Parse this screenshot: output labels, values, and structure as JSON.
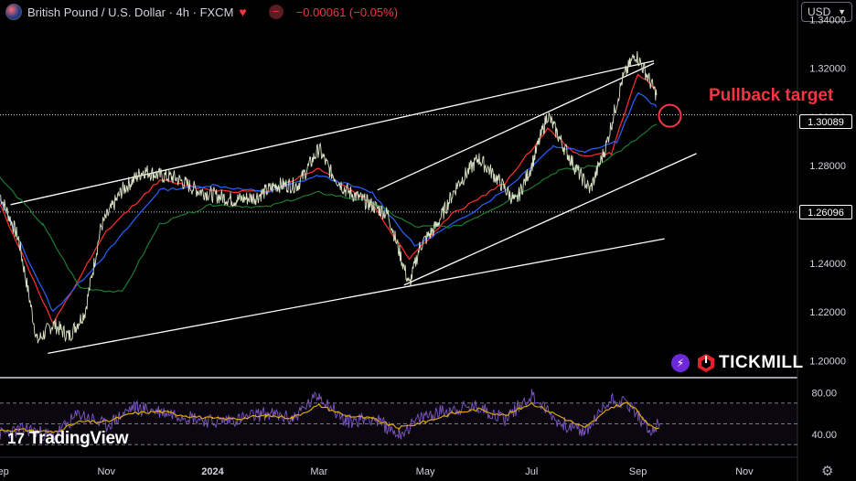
{
  "header": {
    "symbol_line": "British Pound / U.S. Dollar · 4h · FXCM",
    "change": "−0.00061 (−0.05%)",
    "minus_badge": "−"
  },
  "currency": {
    "value": "USD",
    "chevron_icon": "chevron-down-icon"
  },
  "price_tags": {
    "current": "1.30089",
    "level": "1.26096"
  },
  "annotation": {
    "text": "Pullback target"
  },
  "brand": {
    "name": "TICKMILL",
    "bolt_icon": "bolt-icon"
  },
  "watermark": {
    "logo": "17",
    "name": "TradingView"
  },
  "colors": {
    "background": "#000000",
    "price": "#d8e3c4",
    "sma_fast": "#ff3030",
    "sma_mid": "#2962ff",
    "sma_slow": "#1e7a2e",
    "trendline": "#ffffff",
    "annotation": "#f23645",
    "rsi": "#7e57c2",
    "rsi_signal": "#e7b000"
  },
  "chart_data": [
    {
      "type": "line",
      "x_ticks": [
        "Sep",
        "Nov",
        "2024",
        "Mar",
        "May",
        "Jul",
        "Sep",
        "Nov"
      ],
      "y_ticks": [
        "1.34000",
        "1.32000",
        "1.30000",
        "1.28000",
        "1.26000",
        "1.24000",
        "1.22000",
        "1.20000"
      ],
      "ylim": [
        1.193,
        1.348
      ],
      "x_domain": [
        0,
        15
      ],
      "x_tick_positions": [
        0,
        2,
        4,
        6,
        8,
        10,
        12,
        14
      ],
      "series": [
        {
          "role": "price",
          "x": [
            0,
            0.35,
            0.7,
            1.0,
            1.3,
            1.6,
            1.9,
            2.3,
            2.7,
            3.0,
            3.3,
            3.7,
            4.0,
            4.4,
            4.8,
            5.2,
            5.6,
            6.0,
            6.2,
            6.5,
            6.9,
            7.3,
            7.7,
            7.9,
            8.2,
            8.6,
            9.0,
            9.3,
            9.7,
            10.0,
            10.3,
            10.6,
            10.8,
            11.1,
            11.4,
            11.7,
            11.95,
            12.15,
            12.35
          ],
          "values": [
            1.268,
            1.25,
            1.208,
            1.215,
            1.21,
            1.22,
            1.255,
            1.27,
            1.278,
            1.276,
            1.275,
            1.27,
            1.268,
            1.266,
            1.267,
            1.272,
            1.272,
            1.287,
            1.278,
            1.27,
            1.265,
            1.26,
            1.231,
            1.247,
            1.255,
            1.272,
            1.283,
            1.276,
            1.265,
            1.28,
            1.301,
            1.288,
            1.28,
            1.27,
            1.288,
            1.315,
            1.326,
            1.318,
            1.309
          ]
        },
        {
          "role": "sma_fast",
          "x": [
            0,
            1.0,
            2.0,
            3.0,
            4.0,
            5.0,
            6.0,
            7.0,
            7.7,
            8.5,
            9.5,
            10.3,
            10.9,
            11.5,
            12.0,
            12.35
          ],
          "values": [
            1.264,
            1.215,
            1.253,
            1.274,
            1.27,
            1.269,
            1.279,
            1.264,
            1.242,
            1.26,
            1.273,
            1.295,
            1.284,
            1.285,
            1.318,
            1.311
          ]
        },
        {
          "role": "sma_mid",
          "x": [
            0,
            1.0,
            2.0,
            3.0,
            4.0,
            5.0,
            6.0,
            7.0,
            7.8,
            8.6,
            9.5,
            10.4,
            11.0,
            11.6,
            12.0,
            12.35
          ],
          "values": [
            1.266,
            1.22,
            1.244,
            1.27,
            1.272,
            1.269,
            1.276,
            1.269,
            1.247,
            1.257,
            1.27,
            1.288,
            1.286,
            1.29,
            1.31,
            1.304
          ]
        },
        {
          "role": "sma_slow",
          "x": [
            0,
            0.8,
            1.5,
            2.3,
            3.0,
            4.0,
            5.0,
            6.0,
            7.0,
            7.8,
            8.6,
            9.5,
            10.5,
            11.2,
            11.8,
            12.35
          ],
          "values": [
            1.275,
            1.256,
            1.23,
            1.228,
            1.256,
            1.264,
            1.263,
            1.269,
            1.265,
            1.255,
            1.255,
            1.265,
            1.278,
            1.28,
            1.288,
            1.297
          ]
        }
      ],
      "trendlines": [
        {
          "x": [
            0.2,
            12.3
          ],
          "values": [
            1.264,
            1.323
          ]
        },
        {
          "x": [
            0.9,
            12.5
          ],
          "values": [
            1.203,
            1.25
          ]
        },
        {
          "x": [
            7.1,
            12.3
          ],
          "values": [
            1.27,
            1.322
          ]
        },
        {
          "x": [
            7.6,
            13.1
          ],
          "values": [
            1.231,
            1.285
          ]
        }
      ],
      "current_price": 1.30089,
      "level": 1.26096,
      "target_marker": {
        "x": 12.6,
        "value": 1.3005
      }
    },
    {
      "type": "line",
      "y_ticks": [
        "80.00",
        "40.00"
      ],
      "ylim": [
        25,
        90
      ],
      "x_domain": [
        0,
        15
      ],
      "bands": [
        70,
        50,
        30
      ],
      "series": [
        {
          "role": "rsi",
          "x": [
            0,
            0.5,
            1.0,
            1.5,
            2.0,
            2.5,
            3.0,
            3.5,
            4.0,
            4.5,
            5.0,
            5.5,
            6.0,
            6.5,
            7.0,
            7.5,
            8.0,
            8.5,
            9.0,
            9.5,
            10.0,
            10.5,
            11.0,
            11.5,
            11.8,
            12.0,
            12.2,
            12.4
          ],
          "values": [
            40,
            45,
            38,
            60,
            48,
            66,
            62,
            58,
            52,
            55,
            60,
            55,
            78,
            52,
            56,
            40,
            58,
            64,
            66,
            55,
            78,
            52,
            42,
            74,
            70,
            58,
            42,
            50
          ]
        },
        {
          "role": "rsi_signal",
          "x": [
            0,
            0.5,
            1.0,
            1.5,
            2.0,
            2.5,
            3.0,
            3.5,
            4.0,
            4.5,
            5.0,
            5.5,
            6.0,
            6.5,
            7.0,
            7.5,
            8.0,
            8.5,
            9.0,
            9.5,
            10.0,
            10.5,
            11.0,
            11.5,
            11.8,
            12.0,
            12.2,
            12.4
          ],
          "values": [
            44,
            44,
            42,
            52,
            52,
            60,
            62,
            58,
            55,
            55,
            58,
            56,
            68,
            58,
            55,
            46,
            52,
            60,
            64,
            58,
            70,
            58,
            46,
            66,
            70,
            62,
            48,
            46
          ]
        }
      ]
    }
  ]
}
